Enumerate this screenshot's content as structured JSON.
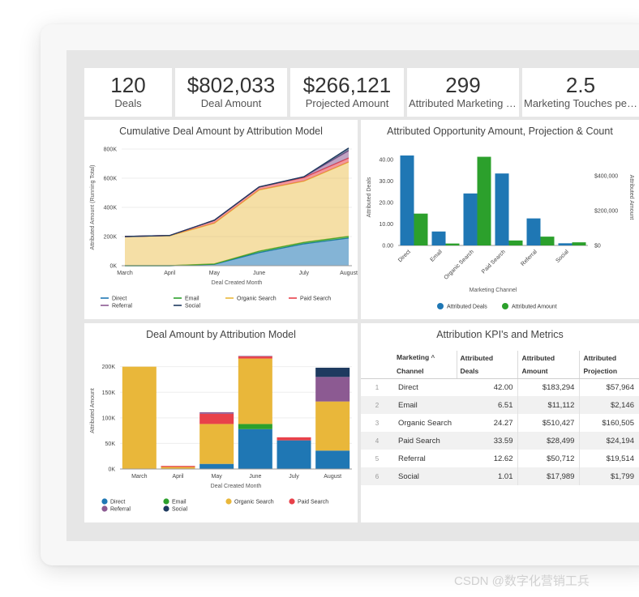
{
  "kpis": [
    {
      "value": "120",
      "label": "Deals"
    },
    {
      "value": "$802,033",
      "label": "Deal Amount"
    },
    {
      "value": "$266,121",
      "label": "Projected Amount"
    },
    {
      "value": "299",
      "label": "Attributed Marketing Touches"
    },
    {
      "value": "2.5",
      "label": "Marketing Touches per Deal"
    }
  ],
  "charts": {
    "cumulative": {
      "title": "Cumulative Deal Amount by Attribution Model",
      "xlabel": "Deal Created Month",
      "ylabel": "Attributed Amount (Running Total)"
    },
    "opportunity": {
      "title": "Attributed Opportunity Amount, Projection & Count",
      "xlabel": "Marketing Channel",
      "ylabel_left": "Attributed Deals",
      "ylabel_right": "Attributed Amount"
    },
    "deal_amount": {
      "title": "Deal Amount by Attribution Model",
      "xlabel": "Deal Created Month",
      "ylabel": "Attributed Amount"
    }
  },
  "chart_data": [
    {
      "type": "area",
      "title": "Cumulative Deal Amount by Attribution Model",
      "xlabel": "Deal Created Month",
      "ylabel": "Attributed Amount (Running Total)",
      "categories": [
        "March",
        "April",
        "May",
        "June",
        "July",
        "August"
      ],
      "y_ticks": [
        "0K",
        "200K",
        "400K",
        "600K",
        "800K"
      ],
      "ylim": [
        0,
        800000
      ],
      "series": [
        {
          "name": "Direct",
          "color": "#1f77b4",
          "values": [
            0,
            0,
            10000,
            90000,
            150000,
            190000
          ]
        },
        {
          "name": "Email",
          "color": "#2ca02c",
          "values": [
            0,
            0,
            2000,
            10000,
            10000,
            11000
          ]
        },
        {
          "name": "Organic Search",
          "color": "#e9b73a",
          "values": [
            200000,
            205000,
            280000,
            420000,
            420000,
            510000
          ]
        },
        {
          "name": "Paid Search",
          "color": "#e8414a",
          "values": [
            0,
            2000,
            20000,
            20000,
            25000,
            28000
          ]
        },
        {
          "name": "Referral",
          "color": "#8c5a92",
          "values": [
            0,
            0,
            0,
            0,
            5000,
            50000
          ]
        },
        {
          "name": "Social",
          "color": "#1e3a5f",
          "values": [
            0,
            0,
            0,
            0,
            0,
            18000
          ]
        }
      ],
      "legend": [
        "Direct",
        "Email",
        "Organic Search",
        "Paid Search",
        "Referral",
        "Social"
      ]
    },
    {
      "type": "bar",
      "title": "Attributed Opportunity Amount, Projection & Count",
      "xlabel": "Marketing Channel",
      "categories": [
        "Direct",
        "Email",
        "Organic Search",
        "Paid Search",
        "Referral",
        "Social"
      ],
      "left_ticks": [
        "0.00",
        "10.00",
        "20.00",
        "30.00",
        "40.00"
      ],
      "right_ticks": [
        "$0",
        "$200,000",
        "$400,000"
      ],
      "series": [
        {
          "name": "Attributed Deals",
          "axis": "left",
          "color": "#1f77b4",
          "values": [
            42.0,
            6.51,
            24.27,
            33.59,
            12.62,
            1.01
          ]
        },
        {
          "name": "Attributed Amount",
          "axis": "right",
          "color": "#2ca02c",
          "values": [
            183294,
            11112,
            510427,
            28499,
            50712,
            17989
          ]
        }
      ],
      "ylim_left": [
        0,
        45
      ],
      "ylim_right": [
        0,
        555000
      ]
    },
    {
      "type": "bar",
      "stacked": true,
      "title": "Deal Amount by Attribution Model",
      "xlabel": "Deal Created Month",
      "ylabel": "Attributed Amount",
      "categories": [
        "March",
        "April",
        "May",
        "June",
        "July",
        "August"
      ],
      "y_ticks": [
        "0K",
        "50K",
        "100K",
        "150K",
        "200K"
      ],
      "ylim": [
        0,
        200000
      ],
      "series": [
        {
          "name": "Direct",
          "color": "#1f77b4",
          "values": [
            0,
            0,
            10000,
            78000,
            56000,
            36000
          ]
        },
        {
          "name": "Email",
          "color": "#2ca02c",
          "values": [
            0,
            0,
            0,
            10000,
            0,
            0
          ]
        },
        {
          "name": "Organic Search",
          "color": "#e9b73a",
          "values": [
            200000,
            4000,
            78000,
            128000,
            0,
            96000
          ]
        },
        {
          "name": "Paid Search",
          "color": "#e8414a",
          "values": [
            0,
            2000,
            20000,
            4000,
            6000,
            0
          ]
        },
        {
          "name": "Referral",
          "color": "#8c5a92",
          "values": [
            0,
            0,
            3000,
            1000,
            0,
            48000
          ]
        },
        {
          "name": "Social",
          "color": "#1e3a5f",
          "values": [
            0,
            0,
            0,
            0,
            0,
            18000
          ]
        }
      ],
      "legend": [
        "Direct",
        "Email",
        "Organic Search",
        "Paid Search",
        "Referral",
        "Social"
      ]
    }
  ],
  "kpi_table": {
    "title": "Attribution KPI's and Metrics",
    "headers": [
      [
        "Marketing",
        "Channel"
      ],
      [
        "Attributed",
        "Deals"
      ],
      [
        "Attributed",
        "Amount"
      ],
      [
        "Attributed",
        "Projection"
      ]
    ],
    "sort_arrow": "^",
    "rows": [
      {
        "idx": "1",
        "channel": "Direct",
        "deals": "42.00",
        "amount": "$183,294",
        "projection": "$57,964"
      },
      {
        "idx": "2",
        "channel": "Email",
        "deals": "6.51",
        "amount": "$11,112",
        "projection": "$2,146"
      },
      {
        "idx": "3",
        "channel": "Organic Search",
        "deals": "24.27",
        "amount": "$510,427",
        "projection": "$160,505"
      },
      {
        "idx": "4",
        "channel": "Paid Search",
        "deals": "33.59",
        "amount": "$28,499",
        "projection": "$24,194"
      },
      {
        "idx": "5",
        "channel": "Referral",
        "deals": "12.62",
        "amount": "$50,712",
        "projection": "$19,514"
      },
      {
        "idx": "6",
        "channel": "Social",
        "deals": "1.01",
        "amount": "$17,989",
        "projection": "$1,799"
      }
    ]
  },
  "watermark": "CSDN @数字化营销工兵"
}
